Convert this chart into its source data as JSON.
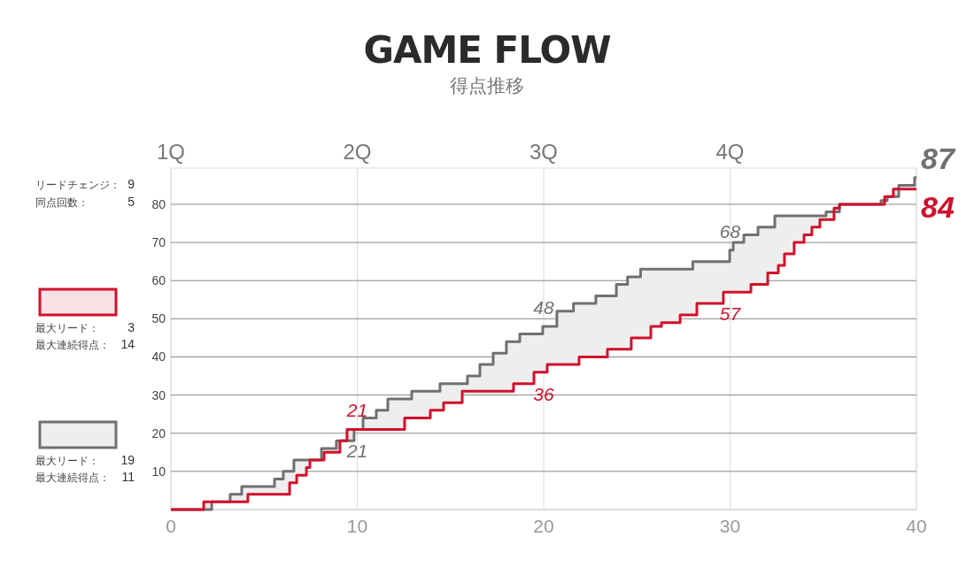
{
  "chart_data": {
    "type": "step",
    "title": "GAME FLOW",
    "subtitle": "得点推移",
    "xlim": [
      0,
      40
    ],
    "xticks": [
      0,
      10,
      20,
      30,
      40
    ],
    "ylim": [
      0,
      89.5
    ],
    "yticks": [
      10,
      20,
      30,
      40,
      50,
      60,
      70,
      80
    ],
    "grid": true,
    "marker": "none",
    "line_style": "solid",
    "annotations": [
      "1Q",
      "2Q",
      "3Q",
      "4Q",
      "リードチェンジ： 9",
      "同点回数： 5",
      "最大リード： 3",
      "最大連続得点： 14",
      "最大リード： 19",
      "最大連続得点： 11"
    ],
    "series": [
      {
        "color": "#d0112b",
        "x": [
          0,
          1.76,
          4.13,
          6.37,
          6.75,
          7.27,
          7.46,
          8.22,
          9.07,
          9.45,
          10,
          12.54,
          13.92,
          14.63,
          15.63,
          18.38,
          19.48,
          20,
          20.19,
          21.9,
          23.42,
          24.7,
          25.75,
          26.32,
          27.32,
          28.22,
          29.64,
          30,
          31.12,
          32.02,
          32.59,
          32.92,
          33.44,
          33.97,
          34.39,
          34.82,
          35.58,
          35.87,
          38.29,
          38.76,
          40
        ],
        "values": [
          0,
          2,
          4,
          7,
          9,
          11,
          13,
          15,
          18,
          21,
          21,
          24,
          26,
          28,
          31,
          33,
          36,
          36,
          38,
          40,
          42,
          45,
          48,
          49,
          51,
          54,
          57,
          57,
          59,
          62,
          64,
          67,
          70,
          72,
          74,
          76,
          79,
          80,
          82,
          84,
          84
        ],
        "value_labels": [
          null,
          null,
          null,
          null,
          null,
          null,
          null,
          null,
          null,
          null,
          "21",
          null,
          null,
          null,
          null,
          null,
          null,
          "36",
          null,
          null,
          null,
          null,
          null,
          null,
          null,
          null,
          null,
          "57",
          null,
          null,
          null,
          null,
          null,
          null,
          null,
          null,
          null,
          null,
          null,
          null,
          "84"
        ]
      },
      {
        "color": "#707070",
        "x": [
          0,
          2.19,
          3.18,
          3.8,
          5.56,
          6.03,
          6.6,
          8.08,
          8.88,
          9.83,
          10,
          10.31,
          11.02,
          11.64,
          12.92,
          14.44,
          15.91,
          16.58,
          17.29,
          18.0,
          18.72,
          19.95,
          20,
          20.71,
          21.6,
          22.8,
          23.9,
          24.5,
          25.2,
          28.0,
          29.98,
          30,
          30.17,
          30.74,
          31.5,
          32.4,
          35.15,
          35.87,
          38.1,
          38.43,
          39.05,
          39.9,
          40
        ],
        "values": [
          0,
          2,
          4,
          6,
          8,
          10,
          13,
          16,
          18,
          21,
          21,
          24,
          26,
          29,
          31,
          33,
          35,
          38,
          41,
          44,
          46,
          48,
          48,
          52,
          54,
          56,
          59,
          61,
          63,
          65,
          68,
          68,
          70,
          72,
          74,
          77,
          78,
          80,
          81,
          82,
          85,
          87,
          87
        ],
        "value_labels": [
          null,
          null,
          null,
          null,
          null,
          null,
          null,
          null,
          null,
          null,
          "21",
          null,
          null,
          null,
          null,
          null,
          null,
          null,
          null,
          null,
          null,
          null,
          "48",
          null,
          null,
          null,
          null,
          null,
          null,
          null,
          null,
          "68",
          null,
          null,
          null,
          null,
          null,
          null,
          null,
          null,
          null,
          null,
          "87"
        ]
      }
    ]
  }
}
